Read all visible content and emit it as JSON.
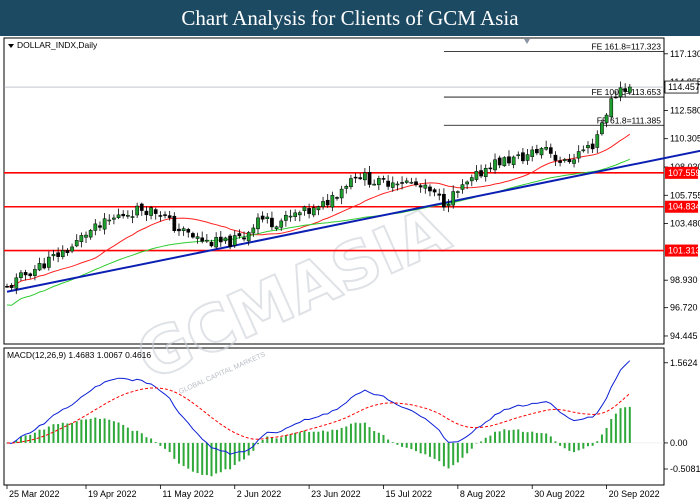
{
  "banner": {
    "title": "Chart Analysis for Clients of GCM Asia"
  },
  "watermark": {
    "text": "GCMASIA",
    "subtext": "GLOBAL CAPITAL MARKETS"
  },
  "chart_data": {
    "type": "candlestick",
    "symbol_label": "DOLLAR_INDX,Daily",
    "last_price": {
      "value": 114.457,
      "label": "114.457"
    },
    "price_axis": {
      "ylim": [
        93.8,
        118.4
      ],
      "ticks": [
        {
          "value": 117.13,
          "label": "117.130"
        },
        {
          "value": 114.855,
          "label": "114.855"
        },
        {
          "value": 112.58,
          "label": "112.580"
        },
        {
          "value": 110.305,
          "label": "110.305"
        },
        {
          "value": 108.03,
          "label": "108.030"
        },
        {
          "value": 105.755,
          "label": "105.755"
        },
        {
          "value": 103.48,
          "label": "103.480"
        },
        {
          "value": 98.93,
          "label": "98.930"
        },
        {
          "value": 96.72,
          "label": "96.720"
        },
        {
          "value": 94.445,
          "label": "94.445"
        }
      ]
    },
    "x_axis": {
      "n_bars": 135,
      "ticks": [
        {
          "i": 0,
          "label": "25 Mar 2022"
        },
        {
          "i": 17,
          "label": "19 Apr 2022"
        },
        {
          "i": 33,
          "label": "11 May 2022"
        },
        {
          "i": 49,
          "label": "2 Jun 2022"
        },
        {
          "i": 65,
          "label": "23 Jun 2022"
        },
        {
          "i": 81,
          "label": "15 Jul 2022"
        },
        {
          "i": 97,
          "label": "8 Aug 2022"
        },
        {
          "i": 113,
          "label": "30 Aug 2022"
        },
        {
          "i": 129,
          "label": "20 Sep 2022"
        }
      ]
    },
    "horizontal_levels": [
      {
        "value": 107.559,
        "label": "107.559",
        "color": "#ff0000"
      },
      {
        "value": 104.834,
        "label": "104.834",
        "color": "#ff0000"
      },
      {
        "value": 101.313,
        "label": "101.313",
        "color": "#ff0000"
      }
    ],
    "fibonacci_levels": [
      {
        "value": 117.323,
        "label": "FE 161.8=117.323"
      },
      {
        "value": 113.653,
        "label": "FE 100.0=113.653"
      },
      {
        "value": 111.385,
        "label": "FE 61.8=111.385"
      }
    ],
    "fib_start_bar": 94,
    "trendline": {
      "from": {
        "i": 0,
        "value": 98.0
      },
      "to": {
        "i": 158,
        "value": 110.0
      },
      "color": "#0b1fb3"
    },
    "anchors": [
      [
        0,
        98.3
      ],
      [
        4,
        99.4
      ],
      [
        8,
        100.3
      ],
      [
        11,
        101.0
      ],
      [
        14,
        101.6
      ],
      [
        17,
        102.7
      ],
      [
        20,
        103.2
      ],
      [
        24,
        104.1
      ],
      [
        29,
        104.7
      ],
      [
        33,
        104.4
      ],
      [
        36,
        103.2
      ],
      [
        40,
        102.4
      ],
      [
        43,
        102.0
      ],
      [
        47,
        101.9
      ],
      [
        51,
        102.4
      ],
      [
        54,
        104.0
      ],
      [
        57,
        103.6
      ],
      [
        60,
        103.8
      ],
      [
        63,
        104.3
      ],
      [
        67,
        104.6
      ],
      [
        71,
        106.0
      ],
      [
        75,
        107.5
      ],
      [
        77,
        107.2
      ],
      [
        80,
        106.7
      ],
      [
        84,
        107.0
      ],
      [
        87,
        106.7
      ],
      [
        91,
        106.0
      ],
      [
        94,
        105.2
      ],
      [
        97,
        106.0
      ],
      [
        100,
        106.9
      ],
      [
        104,
        108.3
      ],
      [
        108,
        108.6
      ],
      [
        111,
        108.8
      ],
      [
        114,
        109.3
      ],
      [
        116,
        109.7
      ],
      [
        118,
        108.8
      ],
      [
        120,
        108.3
      ],
      [
        123,
        109.2
      ],
      [
        126,
        109.8
      ],
      [
        128,
        111.6
      ],
      [
        130,
        113.3
      ],
      [
        132,
        114.4
      ]
    ],
    "macd": {
      "label": "MACD(12,26,9) 1.4683 1.0067 0.4616",
      "ylim": [
        -0.82,
        1.85
      ],
      "ticks": [
        {
          "value": 1.5624,
          "label": "1.5624"
        },
        {
          "value": 0.0,
          "label": "0.00"
        },
        {
          "value": -0.5081,
          "label": "-0.5081"
        }
      ],
      "macd_color": "#0b1fd6",
      "signal_color": "#ff0000",
      "histogram_color": "#2fa83a"
    },
    "moving_averages": [
      {
        "period": 20,
        "color": "#ff2020"
      },
      {
        "period": 50,
        "color": "#30cc30"
      }
    ]
  }
}
